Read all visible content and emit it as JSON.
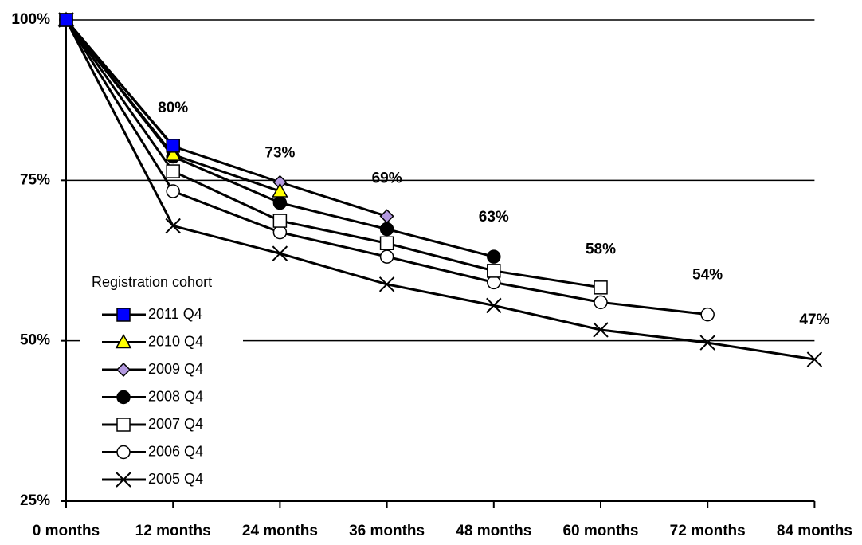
{
  "chart_data": {
    "type": "line",
    "categories": [
      "0 months",
      "12 months",
      "24 months",
      "36 months",
      "48 months",
      "60 months",
      "72 months",
      "84 months"
    ],
    "ylim": [
      25,
      100
    ],
    "yticks": [
      {
        "value": 25,
        "label": "25%"
      },
      {
        "value": 50,
        "label": "50%"
      },
      {
        "value": 75,
        "label": "75%"
      },
      {
        "value": 100,
        "label": "100%"
      }
    ],
    "grid": true,
    "legend_title": "Registration cohort",
    "legend": "left",
    "series": [
      {
        "name": "2011 Q4",
        "color": "#0000ff",
        "marker": "square",
        "values": [
          100,
          80.4,
          null,
          null,
          null,
          null,
          null,
          null
        ]
      },
      {
        "name": "2010 Q4",
        "color": "#ffff00",
        "marker": "triangle",
        "values": [
          100,
          79,
          73.3,
          null,
          null,
          null,
          null,
          null
        ]
      },
      {
        "name": "2009 Q4",
        "color": "#b399e0",
        "marker": "diamond",
        "values": [
          100,
          80.3,
          74.7,
          69.4,
          null,
          null,
          null,
          null
        ]
      },
      {
        "name": "2008 Q4",
        "color": "#000000",
        "marker": "circle",
        "values": [
          100,
          78.7,
          71.5,
          67.4,
          63.1,
          null,
          null,
          null
        ]
      },
      {
        "name": "2007 Q4",
        "color": "#ffffff",
        "marker": "square",
        "values": [
          100,
          76.4,
          68.7,
          65.2,
          60.9,
          58.3,
          null,
          null
        ]
      },
      {
        "name": "2006 Q4",
        "color": "#ffffff",
        "marker": "circle",
        "values": [
          100,
          73.3,
          66.9,
          63.1,
          59.1,
          56,
          54.1,
          null
        ]
      },
      {
        "name": "2005 Q4",
        "color": "#000000",
        "marker": "cross",
        "values": [
          100,
          67.9,
          63.6,
          58.8,
          55.5,
          51.7,
          49.7,
          47.1
        ]
      }
    ],
    "data_labels": {
      "values": [
        null,
        80,
        73,
        69,
        63,
        58,
        54,
        47
      ],
      "value_labels": [
        null,
        "80%",
        "73%",
        "69%",
        "63%",
        "58%",
        "54%",
        "47%"
      ]
    }
  }
}
